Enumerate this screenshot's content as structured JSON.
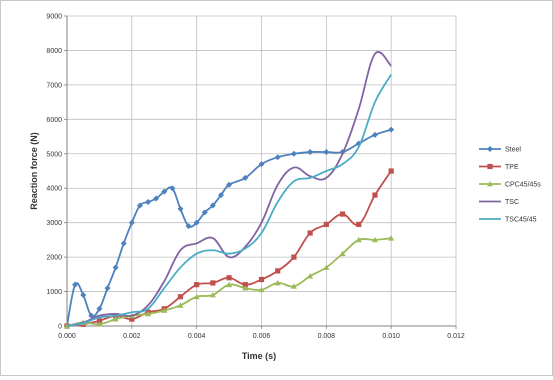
{
  "chart_data": {
    "type": "line",
    "xlabel": "Time (s)",
    "ylabel": "Reaction force (N)",
    "xlim": [
      0,
      0.012
    ],
    "ylim": [
      0,
      9000
    ],
    "x_ticks": [
      "0.000",
      "0.002",
      "0.004",
      "0.006",
      "0.008",
      "0.010",
      "0.012"
    ],
    "y_ticks": [
      "0",
      "1000",
      "2000",
      "3000",
      "4000",
      "5000",
      "6000",
      "7000",
      "8000",
      "9000"
    ],
    "grid": true,
    "legend_position": "right",
    "series": [
      {
        "name": "Steel",
        "color": "#4f81bd",
        "marker": "diamond",
        "points": [
          [
            0,
            0
          ],
          [
            0.00025,
            1200
          ],
          [
            0.0005,
            900
          ],
          [
            0.00075,
            300
          ],
          [
            0.001,
            500
          ],
          [
            0.00125,
            1100
          ],
          [
            0.0015,
            1700
          ],
          [
            0.00175,
            2400
          ],
          [
            0.002,
            3000
          ],
          [
            0.00225,
            3500
          ],
          [
            0.0025,
            3600
          ],
          [
            0.00275,
            3700
          ],
          [
            0.003,
            3900
          ],
          [
            0.00325,
            4000
          ],
          [
            0.0035,
            3400
          ],
          [
            0.00375,
            2900
          ],
          [
            0.004,
            3000
          ],
          [
            0.00425,
            3300
          ],
          [
            0.0045,
            3500
          ],
          [
            0.00475,
            3800
          ],
          [
            0.005,
            4100
          ],
          [
            0.0055,
            4300
          ],
          [
            0.006,
            4700
          ],
          [
            0.0065,
            4900
          ],
          [
            0.007,
            5000
          ],
          [
            0.0075,
            5050
          ],
          [
            0.008,
            5050
          ],
          [
            0.0085,
            5050
          ],
          [
            0.009,
            5300
          ],
          [
            0.0095,
            5550
          ],
          [
            0.01,
            5700
          ]
        ]
      },
      {
        "name": "TPE",
        "color": "#c0504d",
        "marker": "square",
        "points": [
          [
            0,
            0
          ],
          [
            0.0005,
            50
          ],
          [
            0.001,
            150
          ],
          [
            0.0015,
            300
          ],
          [
            0.002,
            200
          ],
          [
            0.0025,
            400
          ],
          [
            0.003,
            500
          ],
          [
            0.0035,
            850
          ],
          [
            0.004,
            1200
          ],
          [
            0.0045,
            1250
          ],
          [
            0.005,
            1400
          ],
          [
            0.0055,
            1200
          ],
          [
            0.006,
            1350
          ],
          [
            0.0065,
            1600
          ],
          [
            0.007,
            2000
          ],
          [
            0.0075,
            2700
          ],
          [
            0.008,
            2950
          ],
          [
            0.0085,
            3250
          ],
          [
            0.009,
            2950
          ],
          [
            0.0095,
            3800
          ],
          [
            0.01,
            4500
          ]
        ]
      },
      {
        "name": "CPC45/45s",
        "color": "#9bbb59",
        "marker": "triangle",
        "points": [
          [
            0,
            0
          ],
          [
            0.0005,
            100
          ],
          [
            0.001,
            50
          ],
          [
            0.0015,
            200
          ],
          [
            0.002,
            300
          ],
          [
            0.0025,
            350
          ],
          [
            0.003,
            450
          ],
          [
            0.0035,
            600
          ],
          [
            0.004,
            850
          ],
          [
            0.0045,
            900
          ],
          [
            0.005,
            1200
          ],
          [
            0.0055,
            1100
          ],
          [
            0.006,
            1050
          ],
          [
            0.0065,
            1250
          ],
          [
            0.007,
            1150
          ],
          [
            0.0075,
            1450
          ],
          [
            0.008,
            1700
          ],
          [
            0.0085,
            2100
          ],
          [
            0.009,
            2500
          ],
          [
            0.0095,
            2500
          ],
          [
            0.01,
            2550
          ]
        ]
      },
      {
        "name": "TSC",
        "color": "#8064a2",
        "marker": "none",
        "points": [
          [
            0,
            0
          ],
          [
            0.0005,
            100
          ],
          [
            0.001,
            300
          ],
          [
            0.0015,
            350
          ],
          [
            0.002,
            300
          ],
          [
            0.0025,
            600
          ],
          [
            0.003,
            1300
          ],
          [
            0.0035,
            2200
          ],
          [
            0.004,
            2400
          ],
          [
            0.0045,
            2550
          ],
          [
            0.005,
            2000
          ],
          [
            0.0055,
            2300
          ],
          [
            0.006,
            3000
          ],
          [
            0.0065,
            4100
          ],
          [
            0.007,
            4600
          ],
          [
            0.0075,
            4350
          ],
          [
            0.008,
            4300
          ],
          [
            0.0085,
            5000
          ],
          [
            0.009,
            6300
          ],
          [
            0.0095,
            7900
          ],
          [
            0.01,
            7550
          ]
        ]
      },
      {
        "name": "TSC45/45",
        "color": "#4bacc6",
        "marker": "none",
        "points": [
          [
            0,
            0
          ],
          [
            0.0005,
            80
          ],
          [
            0.001,
            250
          ],
          [
            0.0015,
            300
          ],
          [
            0.002,
            400
          ],
          [
            0.0025,
            500
          ],
          [
            0.003,
            1100
          ],
          [
            0.0035,
            1700
          ],
          [
            0.004,
            2100
          ],
          [
            0.0045,
            2200
          ],
          [
            0.005,
            2100
          ],
          [
            0.0055,
            2250
          ],
          [
            0.006,
            2700
          ],
          [
            0.0065,
            3600
          ],
          [
            0.007,
            4200
          ],
          [
            0.0075,
            4300
          ],
          [
            0.008,
            4500
          ],
          [
            0.0085,
            4700
          ],
          [
            0.009,
            5200
          ],
          [
            0.0095,
            6500
          ],
          [
            0.01,
            7300
          ]
        ]
      }
    ]
  }
}
